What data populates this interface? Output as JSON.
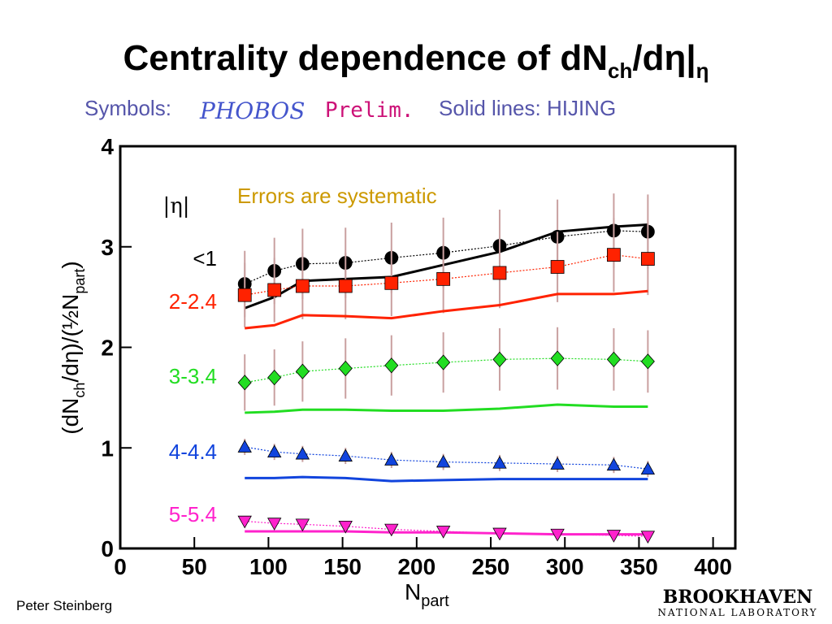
{
  "title": {
    "main": "Centrality dependence of dN",
    "sub": "ch",
    "rest": "/dη|",
    "sub2": "η"
  },
  "subtitle": {
    "symbols": "Symbols:",
    "logo": "PHOBOS",
    "prelim": "Prelim.",
    "lines": "Solid lines:  HIJING"
  },
  "footer": {
    "author": "Peter Steinberg",
    "lab": "BROOKHAVEN",
    "lab_sub": "NATIONAL LABORATORY"
  },
  "chart_data": {
    "type": "scatter",
    "annotations": {
      "errors": "Errors are systematic",
      "eta": "|η|"
    },
    "y_label": {
      "a": "(dN",
      "sub": "ch",
      "b": "/dη)/(½N",
      "sub2": "part",
      "c": ")"
    },
    "x_label": {
      "main": "N",
      "sub": "part"
    },
    "xlim": [
      0,
      415
    ],
    "ylim": [
      0,
      4
    ],
    "xticks": [
      0,
      50,
      100,
      150,
      200,
      250,
      300,
      350,
      400
    ],
    "yticks": [
      0,
      1,
      2,
      3,
      4
    ],
    "x": [
      84,
      104,
      123,
      152,
      183,
      218,
      256,
      295,
      333,
      356
    ],
    "series": [
      {
        "name": "<1",
        "color": "#000000",
        "marker": "circle",
        "values": [
          2.63,
          2.76,
          2.83,
          2.84,
          2.89,
          2.94,
          3.01,
          3.1,
          3.16,
          3.15
        ],
        "errors": [
          0.33,
          0.33,
          0.35,
          0.35,
          0.35,
          0.35,
          0.36,
          0.37,
          0.37,
          0.37
        ],
        "hijing": [
          2.39,
          2.5,
          2.66,
          2.68,
          2.7,
          2.82,
          2.95,
          3.15,
          3.2,
          3.22
        ]
      },
      {
        "name": "2-2.4",
        "color": "#ff2200",
        "marker": "square",
        "values": [
          2.52,
          2.57,
          2.61,
          2.61,
          2.64,
          2.68,
          2.74,
          2.8,
          2.92,
          2.88
        ],
        "errors": [
          0.32,
          0.32,
          0.33,
          0.33,
          0.33,
          0.34,
          0.35,
          0.35,
          0.37,
          0.36
        ],
        "hijing": [
          2.19,
          2.22,
          2.32,
          2.31,
          2.29,
          2.36,
          2.42,
          2.53,
          2.53,
          2.56
        ]
      },
      {
        "name": "3-3.4",
        "color": "#22dd22",
        "marker": "diamond",
        "values": [
          1.65,
          1.7,
          1.76,
          1.79,
          1.82,
          1.85,
          1.88,
          1.89,
          1.88,
          1.86
        ],
        "errors": [
          0.28,
          0.28,
          0.3,
          0.3,
          0.3,
          0.3,
          0.31,
          0.31,
          0.31,
          0.31
        ],
        "hijing": [
          1.35,
          1.36,
          1.38,
          1.38,
          1.37,
          1.37,
          1.39,
          1.43,
          1.41,
          1.41
        ]
      },
      {
        "name": "4-4.4",
        "color": "#1144dd",
        "marker": "triangle-up",
        "values": [
          1.01,
          0.96,
          0.94,
          0.92,
          0.88,
          0.86,
          0.85,
          0.84,
          0.83,
          0.79
        ],
        "errors": [
          0.08,
          0.08,
          0.08,
          0.08,
          0.08,
          0.08,
          0.08,
          0.08,
          0.08,
          0.08
        ],
        "hijing": [
          0.7,
          0.7,
          0.71,
          0.7,
          0.67,
          0.68,
          0.69,
          0.69,
          0.69,
          0.69
        ]
      },
      {
        "name": "5-5.4",
        "color": "#ff22cc",
        "marker": "triangle-down",
        "values": [
          0.27,
          0.25,
          0.24,
          0.22,
          0.19,
          0.17,
          0.15,
          0.14,
          0.13,
          0.12
        ],
        "errors": [
          0.04,
          0.04,
          0.04,
          0.04,
          0.04,
          0.04,
          0.04,
          0.04,
          0.04,
          0.04
        ],
        "hijing": [
          0.17,
          0.17,
          0.17,
          0.17,
          0.16,
          0.16,
          0.15,
          0.14,
          0.14,
          0.14
        ]
      }
    ]
  }
}
